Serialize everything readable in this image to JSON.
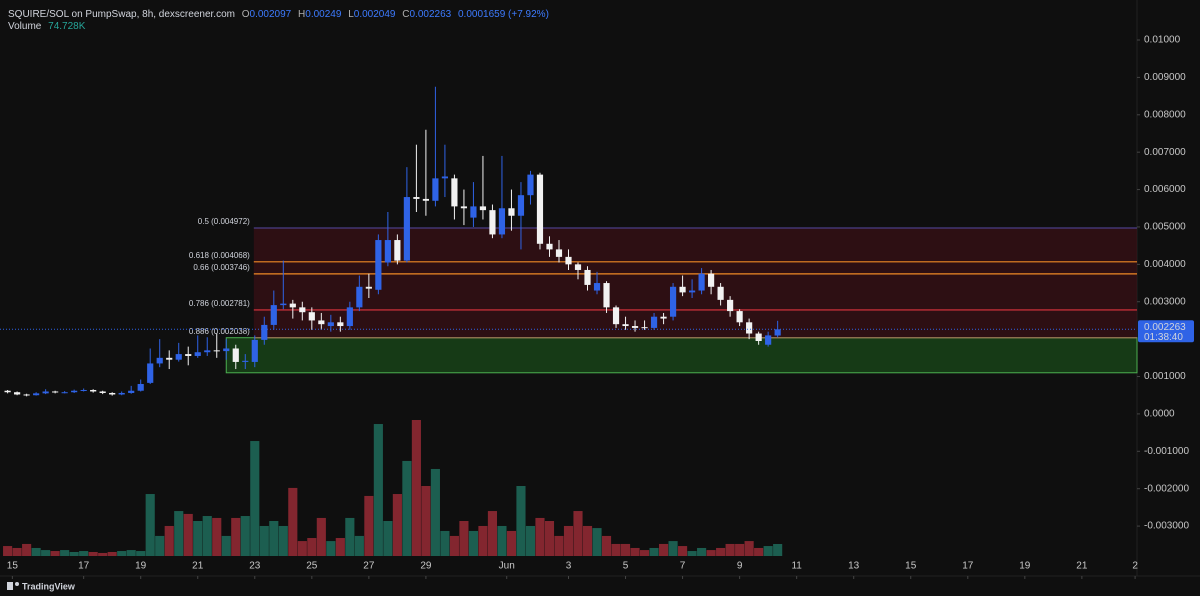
{
  "header": {
    "symbol": "SQUIRE/SOL on PumpSwap, 8h, dexscreener.com",
    "ohlc_keys": [
      "O",
      "H",
      "L",
      "C"
    ],
    "change": "0.0001659 (+7.92%)",
    "countdown": "01:38:40",
    "brand": "TradingView"
  },
  "chart_data": {
    "type": "candlestick",
    "up_color": "#2f63e6",
    "down_color": "#f2f2f2",
    "volume_up_color": "#1c5e50",
    "volume_down_color": "#83262f",
    "ylim": [
      -0.0038,
      0.01107
    ],
    "yticks": [
      {
        "value": 0.01,
        "label": "0.01000"
      },
      {
        "value": 0.009,
        "label": "0.009000"
      },
      {
        "value": 0.008,
        "label": "0.008000"
      },
      {
        "value": 0.007,
        "label": "0.007000"
      },
      {
        "value": 0.006,
        "label": "0.006000"
      },
      {
        "value": 0.005,
        "label": "0.005000"
      },
      {
        "value": 0.004,
        "label": "0.004000"
      },
      {
        "value": 0.003,
        "label": "0.003000"
      },
      {
        "value": 0.001,
        "label": "0.001000"
      },
      {
        "value": 0,
        "label": "0.0000"
      },
      {
        "value": -0.001,
        "label": "-0.001000"
      },
      {
        "value": -0.002,
        "label": "-0.002000"
      },
      {
        "value": -0.003,
        "label": "-0.003000"
      }
    ],
    "xlim": [
      -0.8,
      118.8
    ],
    "xticks": [
      {
        "value": 0.5,
        "label": "15"
      },
      {
        "value": 8,
        "label": "17"
      },
      {
        "value": 14,
        "label": "19"
      },
      {
        "value": 20,
        "label": "21"
      },
      {
        "value": 26,
        "label": "23"
      },
      {
        "value": 32,
        "label": "25"
      },
      {
        "value": 38,
        "label": "27"
      },
      {
        "value": 44,
        "label": "29"
      },
      {
        "value": 52.5,
        "label": "Jun"
      },
      {
        "value": 59,
        "label": "3"
      },
      {
        "value": 65,
        "label": "5"
      },
      {
        "value": 71,
        "label": "7"
      },
      {
        "value": 77,
        "label": "9"
      },
      {
        "value": 83,
        "label": "11"
      },
      {
        "value": 89,
        "label": "13"
      },
      {
        "value": 95,
        "label": "15"
      },
      {
        "value": 101,
        "label": "17"
      },
      {
        "value": 107,
        "label": "19"
      },
      {
        "value": 113,
        "label": "21"
      },
      {
        "value": 118.6,
        "label": "2"
      }
    ],
    "open": [
      0.00062,
      0.00058,
      0.00052,
      0.0005,
      0.00055,
      0.0006,
      0.00058,
      0.00058,
      0.00062,
      0.00064,
      0.0006,
      0.00056,
      0.00052,
      0.00056,
      0.00062,
      0.00083,
      0.00135,
      0.0015,
      0.00145,
      0.0016,
      0.00155,
      0.00165,
      0.0017,
      0.00168,
      0.00175,
      0.00139,
      0.00139,
      0.00198,
      0.00238,
      0.00291,
      0.00295,
      0.00285,
      0.00272,
      0.0025,
      0.00235,
      0.00245,
      0.00235,
      0.00285,
      0.0034,
      0.00332,
      0.00405,
      0.00465,
      0.0041,
      0.0058,
      0.00575,
      0.0057,
      0.0063,
      0.0063,
      0.00555,
      0.00525,
      0.00555,
      0.00545,
      0.0048,
      0.0055,
      0.0053,
      0.00585,
      0.0064,
      0.00455,
      0.0044,
      0.0042,
      0.004,
      0.00385,
      0.0033,
      0.0035,
      0.00285,
      0.0024,
      0.00235,
      0.00232,
      0.0023,
      0.0026,
      0.0026,
      0.0034,
      0.00325,
      0.0033,
      0.00375,
      0.0034,
      0.00305,
      0.00275,
      0.00245,
      0.00215,
      0.00185,
      0.002097
    ],
    "high": [
      0.00064,
      0.0006,
      0.00054,
      0.00058,
      0.00066,
      0.00062,
      0.00061,
      0.00065,
      0.00068,
      0.00066,
      0.00062,
      0.00058,
      0.0006,
      0.00075,
      0.00092,
      0.00175,
      0.002,
      0.0017,
      0.0019,
      0.0018,
      0.0021,
      0.00205,
      0.00215,
      0.002,
      0.00185,
      0.0016,
      0.0021,
      0.0026,
      0.0033,
      0.0041,
      0.00305,
      0.003,
      0.00285,
      0.0027,
      0.00265,
      0.0026,
      0.003,
      0.0037,
      0.00375,
      0.0048,
      0.0054,
      0.0048,
      0.0066,
      0.0072,
      0.0076,
      0.00875,
      0.0072,
      0.0064,
      0.006,
      0.0062,
      0.0069,
      0.0056,
      0.0069,
      0.006,
      0.0062,
      0.0065,
      0.00645,
      0.00475,
      0.00465,
      0.0044,
      0.00405,
      0.00395,
      0.0038,
      0.00355,
      0.0029,
      0.0026,
      0.0025,
      0.0025,
      0.0027,
      0.0027,
      0.0035,
      0.0037,
      0.0036,
      0.0039,
      0.00385,
      0.0035,
      0.00315,
      0.0028,
      0.00255,
      0.0022,
      0.0022,
      0.00249
    ],
    "low": [
      0.00055,
      0.0005,
      0.00047,
      0.00049,
      0.00053,
      0.00055,
      0.00055,
      0.00056,
      0.0006,
      0.00057,
      0.00053,
      0.00049,
      0.0005,
      0.00054,
      0.0006,
      0.0008,
      0.00125,
      0.0012,
      0.0014,
      0.0013,
      0.0015,
      0.00155,
      0.0015,
      0.00145,
      0.0012,
      0.0012,
      0.00125,
      0.00185,
      0.00225,
      0.0028,
      0.00255,
      0.0025,
      0.00225,
      0.00225,
      0.0022,
      0.0022,
      0.00225,
      0.00275,
      0.0031,
      0.0032,
      0.00395,
      0.004,
      0.00405,
      0.0054,
      0.0053,
      0.00555,
      0.0058,
      0.0052,
      0.00505,
      0.005,
      0.0052,
      0.0047,
      0.0047,
      0.0049,
      0.0044,
      0.0056,
      0.0044,
      0.0042,
      0.00405,
      0.00385,
      0.0036,
      0.0033,
      0.0032,
      0.0027,
      0.0023,
      0.00225,
      0.0022,
      0.00225,
      0.00225,
      0.0024,
      0.0025,
      0.00315,
      0.0031,
      0.0032,
      0.0032,
      0.0029,
      0.0026,
      0.00235,
      0.002,
      0.00185,
      0.0018,
      0.002049
    ],
    "close": [
      0.00058,
      0.00052,
      0.0005,
      0.00055,
      0.0006,
      0.00058,
      0.00058,
      0.00062,
      0.00064,
      0.0006,
      0.00056,
      0.00052,
      0.00056,
      0.00062,
      0.0008,
      0.00135,
      0.0015,
      0.00145,
      0.0016,
      0.00155,
      0.00165,
      0.0017,
      0.00168,
      0.00175,
      0.00139,
      0.00142,
      0.00198,
      0.00238,
      0.00291,
      0.00295,
      0.00285,
      0.00272,
      0.0025,
      0.0024,
      0.00245,
      0.00235,
      0.00285,
      0.0034,
      0.00335,
      0.00465,
      0.00465,
      0.0041,
      0.0058,
      0.00575,
      0.0057,
      0.0063,
      0.00635,
      0.00555,
      0.0055,
      0.00555,
      0.00545,
      0.0048,
      0.0055,
      0.0053,
      0.00585,
      0.0064,
      0.00455,
      0.0044,
      0.0042,
      0.004,
      0.00385,
      0.00345,
      0.0035,
      0.00285,
      0.0024,
      0.00235,
      0.0023,
      0.0023,
      0.0026,
      0.00255,
      0.0034,
      0.00325,
      0.0033,
      0.00375,
      0.0034,
      0.00305,
      0.00275,
      0.00245,
      0.00215,
      0.00195,
      0.0021,
      0.002263
    ],
    "volume": {
      "name": "Volume",
      "last_label": "74.728K",
      "values": [
        62,
        50,
        75,
        50,
        37,
        31,
        37,
        25,
        31,
        25,
        19,
        25,
        31,
        37,
        31,
        386,
        125,
        187,
        280,
        262,
        218,
        249,
        237,
        125,
        237,
        249,
        716,
        187,
        218,
        187,
        424,
        93,
        112,
        237,
        93,
        112,
        237,
        125,
        374,
        822,
        218,
        386,
        592,
        847,
        436,
        542,
        156,
        125,
        218,
        156,
        187,
        280,
        187,
        156,
        436,
        187,
        237,
        218,
        125,
        187,
        280,
        187,
        174,
        125,
        75,
        75,
        50,
        37,
        50,
        75,
        93,
        62,
        31,
        50,
        37,
        50,
        75,
        75,
        93,
        50,
        62,
        74.728
      ]
    },
    "fib": {
      "start_bar": 25.9,
      "zone_color": "#3a0f16",
      "levels": [
        {
          "label": "0.5 (0.004972)",
          "value": 0.004972,
          "color": "#4a3f86"
        },
        {
          "label": "0.618 (0.004068)",
          "value": 0.004068,
          "color": "#f08a24"
        },
        {
          "label": "0.66 (0.003746)",
          "value": 0.003746,
          "color": "#f08a24"
        },
        {
          "label": "0.786 (0.002781)",
          "value": 0.002781,
          "color": "#e0343f"
        },
        {
          "label": "0.886 (0.002038)",
          "value": 0.002038,
          "color": "#9a7a55"
        }
      ]
    },
    "zone": {
      "start_bar": 23,
      "top": 0.002038,
      "bottom": 0.0011,
      "color": "#163a16",
      "border": "#4caf50"
    }
  }
}
